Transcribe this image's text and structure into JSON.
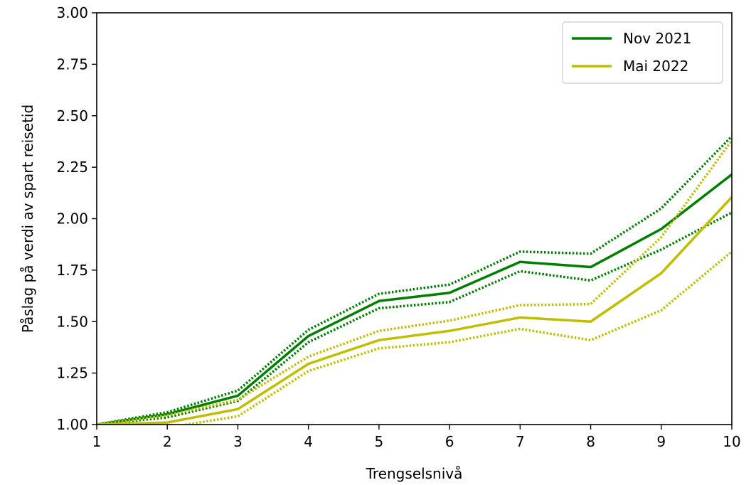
{
  "chart_data": {
    "type": "line",
    "xlabel": "Trengselsnivå",
    "ylabel": "Påslag på verdi av spart reisetid",
    "xlim": [
      1,
      10
    ],
    "ylim": [
      1.0,
      3.0
    ],
    "x_ticks": [
      1,
      2,
      3,
      4,
      5,
      6,
      7,
      8,
      9,
      10
    ],
    "y_ticks": [
      "1.00",
      "1.25",
      "1.50",
      "1.75",
      "2.00",
      "2.25",
      "2.50",
      "2.75",
      "3.00"
    ],
    "x": [
      1,
      2,
      3,
      4,
      5,
      6,
      7,
      8,
      9,
      10
    ],
    "legend_position": "top-right",
    "grid": false,
    "series": [
      {
        "name": "Nov 2021",
        "color": "#008000",
        "values": [
          1.0,
          1.05,
          1.14,
          1.43,
          1.6,
          1.64,
          1.79,
          1.765,
          1.95,
          2.215
        ],
        "upper": [
          1.0,
          1.06,
          1.165,
          1.46,
          1.635,
          1.68,
          1.84,
          1.83,
          2.05,
          2.4
        ],
        "lower": [
          1.0,
          1.035,
          1.115,
          1.4,
          1.565,
          1.595,
          1.745,
          1.7,
          1.85,
          2.03
        ]
      },
      {
        "name": "Mai 2022",
        "color": "#bfbf00",
        "values": [
          1.0,
          1.01,
          1.075,
          1.295,
          1.41,
          1.455,
          1.52,
          1.5,
          1.735,
          2.105
        ],
        "upper": [
          1.0,
          1.045,
          1.12,
          1.33,
          1.455,
          1.505,
          1.58,
          1.585,
          1.91,
          2.38
        ],
        "lower": [
          1.0,
          0.985,
          1.04,
          1.26,
          1.37,
          1.4,
          1.465,
          1.41,
          1.555,
          1.84
        ]
      }
    ]
  }
}
